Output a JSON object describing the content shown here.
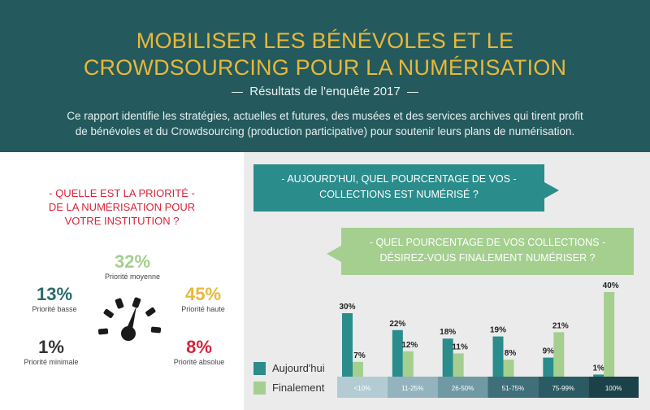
{
  "header": {
    "title_line1": "MOBILISER LES BÉNÉVOLES ET LE",
    "title_line2": "CROWDSOURCING POUR LA NUMÉRISATION",
    "subtitle": "Résultats de l'enquête 2017",
    "intro_line1": "Ce rapport identifie les stratégies, actuelles et futures, des musées et des services archives qui tirent profit",
    "intro_line2": "de bénévoles et du Crowdsourcing (production participative) pour soutenir leurs plans de numérisation."
  },
  "priority": {
    "question_line1": "- QUELLE EST LA PRIORITÉ -",
    "question_line2": "DE LA NUMÉRISATION POUR",
    "question_line3": "VOTRE INSTITUTION ?",
    "items": [
      {
        "pct": "32%",
        "label": "Priorité moyenne",
        "color": "#a4cf8f"
      },
      {
        "pct": "13%",
        "label": "Priorité basse",
        "color": "#2a6a6a"
      },
      {
        "pct": "45%",
        "label": "Priorité haute",
        "color": "#e8b83a"
      },
      {
        "pct": "1%",
        "label": "Priorité minimale",
        "color": "#333333"
      },
      {
        "pct": "8%",
        "label": "Priorité absolue",
        "color": "#d8243a"
      }
    ]
  },
  "questions": {
    "current_line1": "- AUJOURD'HUI, QUEL POURCENTAGE DE VOS -",
    "current_line2": "COLLECTIONS EST NUMÉRISÉ ?",
    "final_line1": "- QUEL POURCENTAGE DE VOS COLLECTIONS -",
    "final_line2": "DÉSIREZ-VOUS FINALEMENT NUMÉRISER ?"
  },
  "legend": {
    "today": "Aujourd'hui",
    "final": "Finalement",
    "today_color": "#2a8c8b",
    "final_color": "#a4cf8f"
  },
  "chart_data": {
    "type": "bar",
    "categories": [
      "<10%",
      "11-25%",
      "26-50%",
      "51-75%",
      "75-99%",
      "100%"
    ],
    "series": [
      {
        "name": "Aujourd'hui",
        "values": [
          30,
          22,
          18,
          19,
          9,
          1
        ],
        "color": "#2a8c8b"
      },
      {
        "name": "Finalement",
        "values": [
          7,
          12,
          11,
          8,
          21,
          40
        ],
        "color": "#a4cf8f"
      }
    ],
    "category_colors": [
      "#b3ccd4",
      "#93b4bf",
      "#6f9aa3",
      "#3f6f78",
      "#2a5a63",
      "#1b4248"
    ],
    "ylim": [
      0,
      40
    ],
    "value_suffix": "%"
  }
}
